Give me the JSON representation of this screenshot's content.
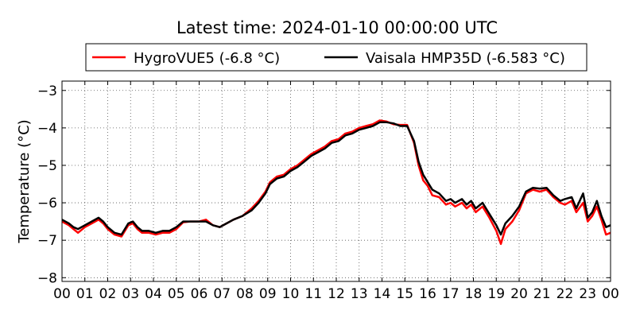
{
  "chart_data": {
    "type": "line",
    "title": "Latest time: 2024-01-10 00:00:00 UTC",
    "ylabel": "Temperature (°C)",
    "xlabel": "",
    "xlim": [
      0,
      24
    ],
    "ylim": [
      -8.1,
      -2.75
    ],
    "grid": true,
    "legend": "top-center",
    "x_tick_labels": [
      "00",
      "01",
      "02",
      "03",
      "04",
      "05",
      "06",
      "07",
      "08",
      "09",
      "10",
      "11",
      "12",
      "13",
      "14",
      "15",
      "16",
      "17",
      "18",
      "19",
      "20",
      "21",
      "22",
      "23",
      "00"
    ],
    "y_ticks": [
      -8,
      -7,
      -6,
      -5,
      -4,
      -3
    ],
    "y_tick_labels": [
      "−8",
      "−7",
      "−6",
      "−5",
      "−4",
      "−3"
    ],
    "series": [
      {
        "name": "HygroVUE5 (-6.8 °C)",
        "color": "#ff0000",
        "points": [
          [
            0,
            -6.5
          ],
          [
            0.3,
            -6.6
          ],
          [
            0.5,
            -6.7
          ],
          [
            0.7,
            -6.8
          ],
          [
            1.0,
            -6.65
          ],
          [
            1.3,
            -6.55
          ],
          [
            1.6,
            -6.45
          ],
          [
            1.8,
            -6.55
          ],
          [
            2.0,
            -6.7
          ],
          [
            2.3,
            -6.85
          ],
          [
            2.6,
            -6.9
          ],
          [
            2.9,
            -6.6
          ],
          [
            3.1,
            -6.55
          ],
          [
            3.3,
            -6.7
          ],
          [
            3.5,
            -6.8
          ],
          [
            3.8,
            -6.8
          ],
          [
            4.1,
            -6.85
          ],
          [
            4.4,
            -6.8
          ],
          [
            4.7,
            -6.8
          ],
          [
            5.0,
            -6.7
          ],
          [
            5.3,
            -6.52
          ],
          [
            5.6,
            -6.5
          ],
          [
            6.0,
            -6.5
          ],
          [
            6.3,
            -6.45
          ],
          [
            6.6,
            -6.6
          ],
          [
            6.9,
            -6.65
          ],
          [
            7.2,
            -6.55
          ],
          [
            7.5,
            -6.45
          ],
          [
            7.9,
            -6.35
          ],
          [
            8.3,
            -6.15
          ],
          [
            8.6,
            -5.95
          ],
          [
            8.9,
            -5.7
          ],
          [
            9.1,
            -5.45
          ],
          [
            9.4,
            -5.3
          ],
          [
            9.7,
            -5.25
          ],
          [
            10.0,
            -5.1
          ],
          [
            10.3,
            -5.0
          ],
          [
            10.6,
            -4.85
          ],
          [
            10.9,
            -4.7
          ],
          [
            11.2,
            -4.6
          ],
          [
            11.5,
            -4.5
          ],
          [
            11.8,
            -4.35
          ],
          [
            12.1,
            -4.3
          ],
          [
            12.4,
            -4.15
          ],
          [
            12.7,
            -4.1
          ],
          [
            13.0,
            -4.0
          ],
          [
            13.3,
            -3.95
          ],
          [
            13.6,
            -3.9
          ],
          [
            13.9,
            -3.8
          ],
          [
            14.2,
            -3.83
          ],
          [
            14.5,
            -3.9
          ],
          [
            14.8,
            -3.92
          ],
          [
            15.1,
            -3.92
          ],
          [
            15.4,
            -4.4
          ],
          [
            15.6,
            -5.0
          ],
          [
            15.8,
            -5.4
          ],
          [
            16.0,
            -5.55
          ],
          [
            16.2,
            -5.8
          ],
          [
            16.5,
            -5.85
          ],
          [
            16.8,
            -6.05
          ],
          [
            17.0,
            -6.0
          ],
          [
            17.2,
            -6.1
          ],
          [
            17.5,
            -6.0
          ],
          [
            17.7,
            -6.15
          ],
          [
            17.9,
            -6.05
          ],
          [
            18.1,
            -6.25
          ],
          [
            18.4,
            -6.1
          ],
          [
            18.7,
            -6.4
          ],
          [
            19.0,
            -6.75
          ],
          [
            19.2,
            -7.1
          ],
          [
            19.4,
            -6.7
          ],
          [
            19.7,
            -6.5
          ],
          [
            20.0,
            -6.2
          ],
          [
            20.3,
            -5.75
          ],
          [
            20.6,
            -5.65
          ],
          [
            20.9,
            -5.7
          ],
          [
            21.2,
            -5.65
          ],
          [
            21.5,
            -5.85
          ],
          [
            21.8,
            -6.0
          ],
          [
            22.0,
            -6.05
          ],
          [
            22.3,
            -5.95
          ],
          [
            22.5,
            -6.25
          ],
          [
            22.8,
            -6.0
          ],
          [
            23.0,
            -6.5
          ],
          [
            23.2,
            -6.35
          ],
          [
            23.4,
            -6.1
          ],
          [
            23.6,
            -6.45
          ],
          [
            23.8,
            -6.85
          ],
          [
            24.0,
            -6.8
          ]
        ]
      },
      {
        "name": "Vaisala HMP35D (-6.583 °C)",
        "color": "#000000",
        "points": [
          [
            0,
            -6.45
          ],
          [
            0.3,
            -6.55
          ],
          [
            0.5,
            -6.65
          ],
          [
            0.7,
            -6.7
          ],
          [
            1.0,
            -6.6
          ],
          [
            1.3,
            -6.5
          ],
          [
            1.6,
            -6.4
          ],
          [
            1.8,
            -6.5
          ],
          [
            2.0,
            -6.65
          ],
          [
            2.3,
            -6.8
          ],
          [
            2.6,
            -6.85
          ],
          [
            2.9,
            -6.55
          ],
          [
            3.1,
            -6.5
          ],
          [
            3.3,
            -6.65
          ],
          [
            3.5,
            -6.75
          ],
          [
            3.8,
            -6.75
          ],
          [
            4.1,
            -6.8
          ],
          [
            4.4,
            -6.75
          ],
          [
            4.7,
            -6.75
          ],
          [
            5.0,
            -6.65
          ],
          [
            5.3,
            -6.5
          ],
          [
            5.6,
            -6.5
          ],
          [
            6.0,
            -6.5
          ],
          [
            6.3,
            -6.5
          ],
          [
            6.6,
            -6.6
          ],
          [
            6.9,
            -6.65
          ],
          [
            7.2,
            -6.55
          ],
          [
            7.5,
            -6.45
          ],
          [
            7.9,
            -6.35
          ],
          [
            8.3,
            -6.2
          ],
          [
            8.6,
            -6.0
          ],
          [
            8.9,
            -5.75
          ],
          [
            9.1,
            -5.5
          ],
          [
            9.4,
            -5.35
          ],
          [
            9.7,
            -5.3
          ],
          [
            10.0,
            -5.15
          ],
          [
            10.3,
            -5.05
          ],
          [
            10.6,
            -4.9
          ],
          [
            10.9,
            -4.75
          ],
          [
            11.2,
            -4.65
          ],
          [
            11.5,
            -4.55
          ],
          [
            11.8,
            -4.4
          ],
          [
            12.1,
            -4.35
          ],
          [
            12.4,
            -4.2
          ],
          [
            12.7,
            -4.15
          ],
          [
            13.0,
            -4.05
          ],
          [
            13.3,
            -4.0
          ],
          [
            13.6,
            -3.95
          ],
          [
            13.9,
            -3.85
          ],
          [
            14.2,
            -3.85
          ],
          [
            14.5,
            -3.88
          ],
          [
            14.8,
            -3.95
          ],
          [
            15.1,
            -3.95
          ],
          [
            15.4,
            -4.35
          ],
          [
            15.6,
            -4.9
          ],
          [
            15.8,
            -5.25
          ],
          [
            16.0,
            -5.45
          ],
          [
            16.2,
            -5.65
          ],
          [
            16.5,
            -5.75
          ],
          [
            16.8,
            -5.95
          ],
          [
            17.0,
            -5.9
          ],
          [
            17.2,
            -6.0
          ],
          [
            17.5,
            -5.9
          ],
          [
            17.7,
            -6.05
          ],
          [
            17.9,
            -5.95
          ],
          [
            18.1,
            -6.15
          ],
          [
            18.4,
            -6.0
          ],
          [
            18.7,
            -6.3
          ],
          [
            19.0,
            -6.6
          ],
          [
            19.2,
            -6.85
          ],
          [
            19.4,
            -6.55
          ],
          [
            19.7,
            -6.35
          ],
          [
            20.0,
            -6.1
          ],
          [
            20.3,
            -5.7
          ],
          [
            20.6,
            -5.6
          ],
          [
            20.9,
            -5.62
          ],
          [
            21.2,
            -5.6
          ],
          [
            21.5,
            -5.8
          ],
          [
            21.8,
            -5.95
          ],
          [
            22.0,
            -5.9
          ],
          [
            22.3,
            -5.85
          ],
          [
            22.5,
            -6.15
          ],
          [
            22.8,
            -5.75
          ],
          [
            23.0,
            -6.4
          ],
          [
            23.2,
            -6.25
          ],
          [
            23.4,
            -5.95
          ],
          [
            23.6,
            -6.35
          ],
          [
            23.8,
            -6.65
          ],
          [
            24.0,
            -6.6
          ]
        ]
      }
    ]
  }
}
